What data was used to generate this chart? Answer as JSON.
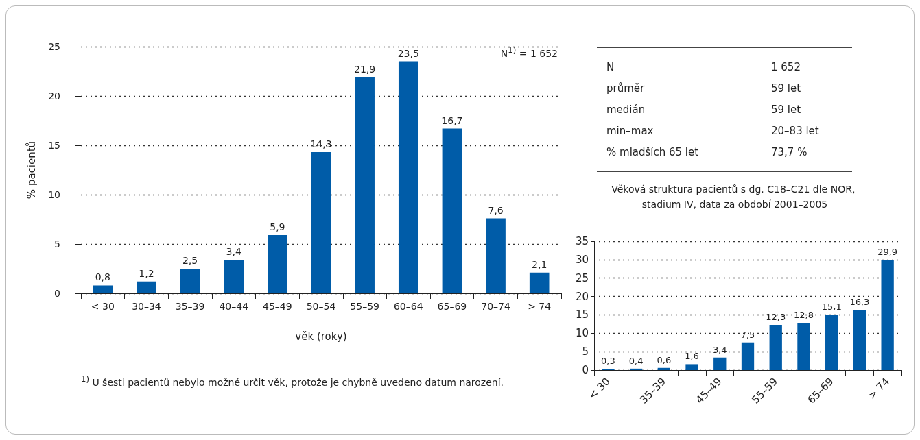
{
  "chart_data": [
    {
      "type": "bar",
      "ylabel": "% pacientů",
      "xlabel": "věk (roky)",
      "categories": [
        "< 30",
        "30–34",
        "35–39",
        "40–44",
        "45–49",
        "50–54",
        "55–59",
        "60–64",
        "65–69",
        "70–74",
        "> 74"
      ],
      "values": [
        0.8,
        1.2,
        2.5,
        3.4,
        5.9,
        14.3,
        21.9,
        23.5,
        16.7,
        7.6,
        2.1
      ],
      "value_labels": [
        "0,8",
        "1,2",
        "2,5",
        "3,4",
        "5,9",
        "14,3",
        "21,9",
        "23,5",
        "16,7",
        "7,6",
        "2,1"
      ],
      "color": "#005ca8",
      "ylim": [
        0,
        25
      ],
      "yticks": [
        0,
        5,
        10,
        15,
        20,
        25
      ],
      "grid": "y",
      "annotations": [
        "N$^{1)}$ = 1 652",
        "$^{1)}$ U šesti pacientů nebylo možné určit věk, protože je chybně uvedeno datum narození."
      ]
    },
    {
      "type": "other",
      "annotations": [
        "N",
        "1 652",
        "průměr",
        "59 let",
        "medián",
        "59 let",
        "min–max",
        "20–83 let",
        "% mladších 65 let",
        "73,7 %"
      ]
    },
    {
      "type": "bar",
      "title": "Věková struktura pacientů s dg. C18–C21 dle NOR, stadium IV, data za období 2001–2005",
      "categories": [
        "< 30",
        null,
        "35–39",
        null,
        "45–49",
        null,
        "55–59",
        null,
        "65–69",
        null,
        "> 74"
      ],
      "values": [
        0.3,
        0.4,
        0.6,
        1.6,
        3.4,
        7.5,
        12.3,
        12.8,
        15.1,
        16.3,
        29.9
      ],
      "value_labels": [
        "0,3",
        "0,4",
        "0,6",
        "1,6",
        "3,4",
        "7,5",
        "12,3",
        "12,8",
        "15,1",
        "16,3",
        "29,9"
      ],
      "color": "#005ca8",
      "ylim": [
        0,
        35
      ],
      "yticks": [
        0,
        5,
        10,
        15,
        20,
        25,
        30,
        35
      ],
      "grid": "y"
    }
  ]
}
